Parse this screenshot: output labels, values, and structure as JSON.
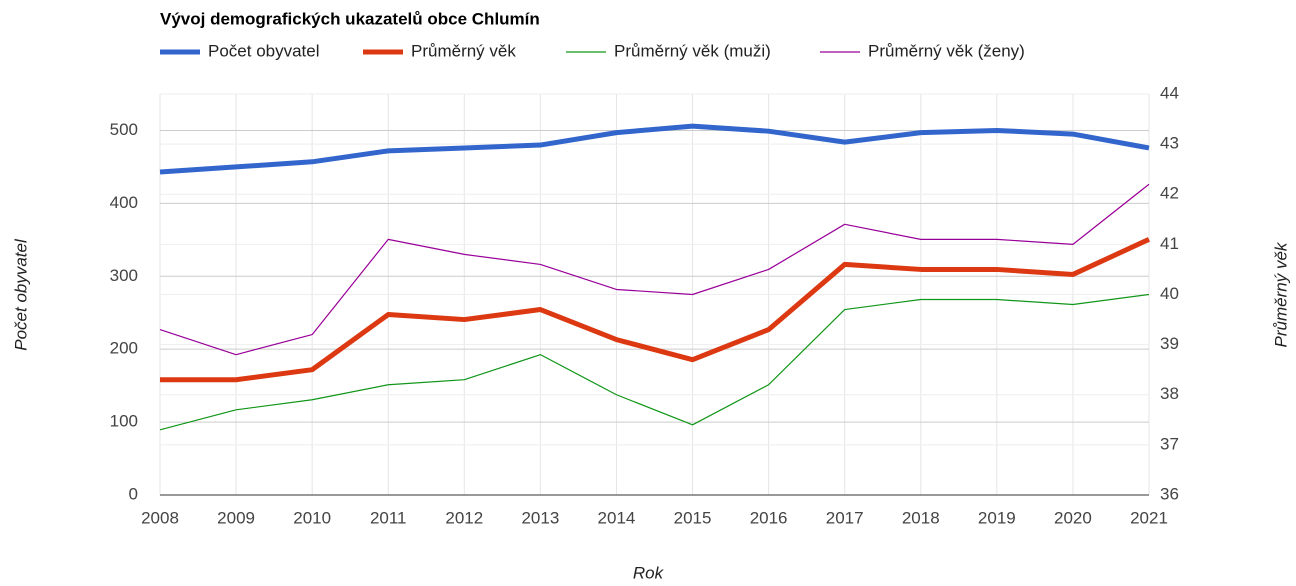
{
  "chart_data": {
    "type": "line",
    "title": "Vývoj demografických ukazatelů obce Chlumín",
    "xlabel": "Rok",
    "ylabel": "Počet obyvatel",
    "y2label": "Průměrný věk",
    "x": [
      2008,
      2009,
      2010,
      2011,
      2012,
      2013,
      2014,
      2015,
      2016,
      2017,
      2018,
      2019,
      2020,
      2021
    ],
    "xlim": [
      2008,
      2021
    ],
    "xticks": [
      2008,
      2009,
      2010,
      2011,
      2012,
      2013,
      2014,
      2015,
      2016,
      2017,
      2018,
      2019,
      2020,
      2021
    ],
    "ylim": [
      0,
      550
    ],
    "yticks": [
      0,
      100,
      200,
      300,
      400,
      500
    ],
    "y2lim": [
      36,
      44
    ],
    "y2ticks": [
      36,
      37,
      38,
      39,
      40,
      41,
      42,
      43,
      44
    ],
    "grid": true,
    "legend": "top",
    "series": [
      {
        "name": "Počet obyvatel",
        "color": "#3366cc",
        "width": 5,
        "values": [
          443,
          450,
          457,
          472,
          476,
          480,
          497,
          506,
          499,
          484,
          497,
          500,
          495,
          476
        ]
      },
      {
        "name": "Průměrný věk",
        "color": "#dc3912",
        "width": 5,
        "axis": "y2",
        "values": [
          38.3,
          38.3,
          38.5,
          39.6,
          39.5,
          39.7,
          39.1,
          38.7,
          39.3,
          40.6,
          40.5,
          40.5,
          40.4,
          41.1
        ]
      },
      {
        "name": "Průměrný věk (muži)",
        "color": "#109618",
        "width": 1.2,
        "axis": "y2",
        "values": [
          37.3,
          37.7,
          37.9,
          38.2,
          38.3,
          38.8,
          38.0,
          37.4,
          38.2,
          39.7,
          39.9,
          39.9,
          39.8,
          40.0
        ]
      },
      {
        "name": "Průměrný věk (ženy)",
        "color": "#990099",
        "width": 1.2,
        "axis": "y2",
        "values": [
          39.3,
          38.8,
          39.2,
          41.1,
          40.8,
          40.6,
          40.1,
          40.0,
          40.5,
          41.4,
          41.1,
          41.1,
          41.0,
          42.2
        ]
      }
    ]
  }
}
